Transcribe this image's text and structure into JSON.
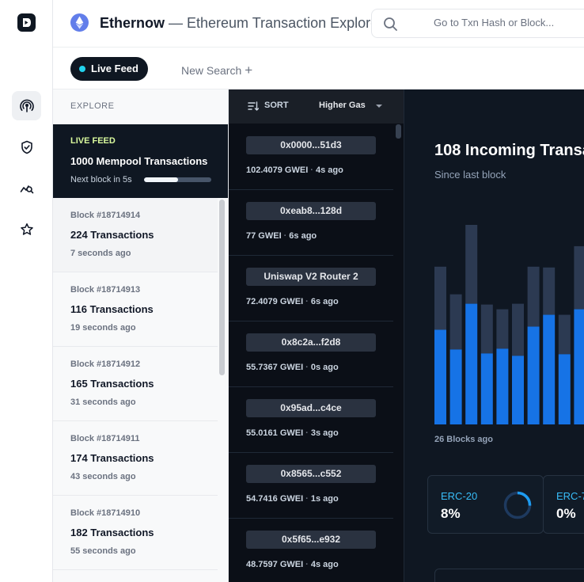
{
  "header": {
    "brand": "Ethernow",
    "subtitle": " — Ethereum Transaction Explorer",
    "search_placeholder": "Go to Txn Hash or Block..."
  },
  "tabs": {
    "live_label": "Live Feed",
    "new_search_label": "New Search"
  },
  "explore": {
    "header": "EXPLORE",
    "live": {
      "label": "LIVE FEED",
      "count": "1000 Mempool Transactions",
      "next": "Next block in 5s",
      "progress": 0.5
    },
    "blocks": [
      {
        "number": "Block #18714914",
        "txns": "224 Transactions",
        "ago": "7 seconds ago"
      },
      {
        "number": "Block #18714913",
        "txns": "116 Transactions",
        "ago": "19 seconds ago"
      },
      {
        "number": "Block #18714912",
        "txns": "165 Transactions",
        "ago": "31 seconds ago"
      },
      {
        "number": "Block #18714911",
        "txns": "174 Transactions",
        "ago": "43 seconds ago"
      },
      {
        "number": "Block #18714910",
        "txns": "182 Transactions",
        "ago": "55 seconds ago"
      }
    ]
  },
  "transactions": {
    "sort_label": "SORT",
    "sort_value": "Higher Gas",
    "items": [
      {
        "hash": "0x0000...51d3",
        "gas": "102.4079 GWEI",
        "ago": "4s ago"
      },
      {
        "hash": "0xeab8...128d",
        "gas": "77 GWEI",
        "ago": "6s ago"
      },
      {
        "hash": "Uniswap V2 Router 2",
        "gas": "72.4079 GWEI",
        "ago": "6s ago"
      },
      {
        "hash": "0x8c2a...f2d8",
        "gas": "55.7367 GWEI",
        "ago": "0s ago"
      },
      {
        "hash": "0x95ad...c4ce",
        "gas": "55.0161 GWEI",
        "ago": "3s ago"
      },
      {
        "hash": "0x8565...c552",
        "gas": "54.7416 GWEI",
        "ago": "1s ago"
      },
      {
        "hash": "0x5f65...e932",
        "gas": "48.7597 GWEI",
        "ago": "4s ago"
      }
    ]
  },
  "dashboard": {
    "incoming": "108 Incoming Transa",
    "since": "Since last block",
    "blocks_ago": "26 Blocks ago",
    "cards": [
      {
        "label": "ERC-20",
        "value": "8%",
        "fraction": 0.08
      },
      {
        "label": "ERC-7",
        "value": "0%",
        "fraction": 0
      }
    ]
  },
  "chart_data": {
    "type": "bar",
    "series": [
      {
        "values": [
          120,
          95,
          153,
          90,
          96,
          87,
          124,
          139,
          89,
          146
        ]
      },
      {
        "values": [
          80,
          70,
          100,
          62,
          50,
          66,
          76,
          60,
          50,
          80
        ]
      }
    ],
    "colors": [
      "#1673e6",
      "#2c3a52"
    ]
  },
  "colors": {
    "accent": "#22d3ee",
    "bar_primary": "#1673e6",
    "bar_secondary": "#2c3a52"
  },
  "icons": {
    "rail": [
      "broadcast-icon",
      "shield-check-icon",
      "chart-search-icon",
      "star-icon"
    ]
  }
}
